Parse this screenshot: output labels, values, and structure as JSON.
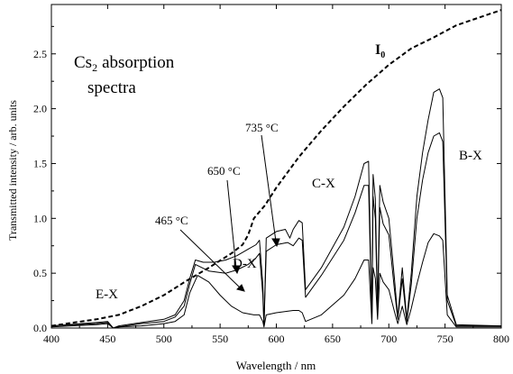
{
  "chart_data": {
    "type": "line",
    "title": "",
    "xlabel": "Wavelength / nm",
    "ylabel": "Transmitted intensity / arb. units",
    "xlim": [
      400,
      800
    ],
    "ylim": [
      0,
      2.95
    ],
    "grid": false,
    "x_ticks": [
      400,
      450,
      500,
      550,
      600,
      650,
      700,
      750,
      800
    ],
    "x_tick_labels": [
      "400",
      "450",
      "500",
      "550",
      "600",
      "650",
      "700",
      "750",
      "800"
    ],
    "y_ticks": [
      0.0,
      0.5,
      1.0,
      1.5,
      2.0,
      2.5
    ],
    "y_tick_labels": [
      "0.0",
      "0.5",
      "1.0",
      "1.5",
      "2.0",
      "2.5"
    ],
    "annotation_texts": {
      "heading_line1": "absorption",
      "heading_line2": "spectra",
      "cs_base": "Cs",
      "cs_sub": "2",
      "i0_base": "I",
      "i0_sub": "0",
      "band_ex": "E-X",
      "band_dx": "D-X",
      "band_cx": "C-X",
      "band_bx": "B-X",
      "t465": "465 °C",
      "t650": "650 °C",
      "t735": "735 °C"
    },
    "series": [
      {
        "name": "I0",
        "style": "dashed",
        "color": "#000000",
        "x": [
          400,
          420,
          440,
          460,
          480,
          500,
          520,
          540,
          560,
          570,
          575,
          580,
          590,
          600,
          620,
          640,
          660,
          680,
          700,
          720,
          740,
          760,
          780,
          800
        ],
        "y": [
          0.02,
          0.05,
          0.08,
          0.12,
          0.2,
          0.3,
          0.43,
          0.55,
          0.68,
          0.76,
          0.85,
          1.0,
          1.12,
          1.28,
          1.56,
          1.8,
          2.02,
          2.22,
          2.4,
          2.55,
          2.65,
          2.76,
          2.83,
          2.9
        ]
      },
      {
        "name": "735 °C",
        "style": "solid",
        "color": "#000000",
        "x": [
          400,
          440,
          450,
          455,
          460,
          480,
          500,
          510,
          518,
          523,
          528,
          535,
          545,
          555,
          565,
          575,
          582,
          585,
          588,
          589,
          591,
          600,
          608,
          612,
          615,
          620,
          623,
          626,
          640,
          660,
          670,
          678,
          682,
          685,
          686,
          688,
          690,
          692,
          695,
          700,
          705,
          708,
          712,
          716,
          720,
          725,
          730,
          735,
          740,
          745,
          748,
          752,
          760,
          800
        ],
        "y": [
          0.02,
          0.05,
          0.06,
          0.0,
          0.02,
          0.05,
          0.08,
          0.12,
          0.25,
          0.45,
          0.62,
          0.6,
          0.6,
          0.62,
          0.66,
          0.72,
          0.76,
          0.8,
          0.4,
          0.02,
          0.82,
          0.88,
          0.9,
          0.82,
          0.9,
          0.98,
          0.96,
          0.35,
          0.55,
          0.92,
          1.2,
          1.5,
          1.52,
          0.08,
          1.4,
          1.18,
          0.2,
          1.3,
          1.15,
          1.0,
          0.45,
          0.1,
          0.55,
          0.08,
          0.5,
          1.2,
          1.6,
          1.9,
          2.15,
          2.18,
          2.1,
          0.3,
          0.03,
          0.02
        ]
      },
      {
        "name": "650 °C",
        "style": "solid",
        "color": "#000000",
        "x": [
          400,
          440,
          450,
          455,
          460,
          480,
          500,
          510,
          518,
          523,
          528,
          540,
          555,
          565,
          575,
          582,
          585,
          588,
          589,
          591,
          600,
          610,
          615,
          620,
          623,
          626,
          640,
          660,
          670,
          678,
          682,
          685,
          686,
          688,
          690,
          692,
          695,
          700,
          705,
          708,
          712,
          716,
          720,
          725,
          730,
          735,
          740,
          745,
          748,
          752,
          760,
          800
        ],
        "y": [
          0.02,
          0.04,
          0.05,
          0.0,
          0.01,
          0.04,
          0.06,
          0.1,
          0.2,
          0.4,
          0.58,
          0.52,
          0.5,
          0.53,
          0.58,
          0.64,
          0.68,
          0.3,
          0.02,
          0.7,
          0.76,
          0.78,
          0.75,
          0.82,
          0.8,
          0.28,
          0.48,
          0.8,
          1.05,
          1.3,
          1.3,
          0.06,
          1.2,
          1.0,
          0.15,
          1.1,
          0.95,
          0.85,
          0.35,
          0.08,
          0.45,
          0.06,
          0.4,
          1.0,
          1.35,
          1.6,
          1.75,
          1.78,
          1.7,
          0.25,
          0.02,
          0.02
        ]
      },
      {
        "name": "465 °C",
        "style": "solid",
        "color": "#000000",
        "x": [
          400,
          440,
          450,
          455,
          460,
          480,
          500,
          510,
          518,
          523,
          530,
          540,
          550,
          560,
          570,
          580,
          585,
          588,
          589,
          591,
          600,
          615,
          620,
          623,
          626,
          640,
          660,
          670,
          678,
          682,
          685,
          686,
          688,
          690,
          692,
          695,
          700,
          705,
          708,
          712,
          716,
          720,
          725,
          730,
          735,
          740,
          745,
          748,
          752,
          760,
          800
        ],
        "y": [
          0.01,
          0.03,
          0.04,
          0.0,
          0.01,
          0.02,
          0.04,
          0.06,
          0.12,
          0.32,
          0.48,
          0.42,
          0.3,
          0.2,
          0.14,
          0.12,
          0.12,
          0.06,
          0.01,
          0.12,
          0.14,
          0.16,
          0.16,
          0.14,
          0.06,
          0.12,
          0.3,
          0.45,
          0.62,
          0.62,
          0.04,
          0.55,
          0.45,
          0.08,
          0.5,
          0.42,
          0.35,
          0.15,
          0.04,
          0.2,
          0.03,
          0.18,
          0.4,
          0.6,
          0.78,
          0.86,
          0.84,
          0.8,
          0.12,
          0.01,
          0.01
        ]
      }
    ]
  }
}
